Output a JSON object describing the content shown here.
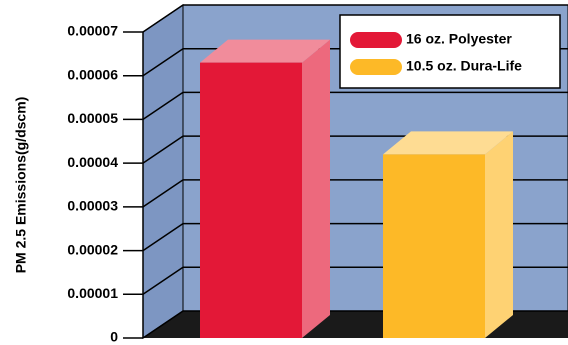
{
  "chart_data": {
    "type": "bar",
    "y_label": "PM 2.5 Emissions(g/dscm)",
    "categories": [
      null
    ],
    "series": [
      {
        "name": "16 oz. Polyester",
        "color": "#e31837",
        "values": [
          6.3e-05
        ]
      },
      {
        "name": "10.5 oz. Dura-Life",
        "color": "#fdb927",
        "values": [
          4.2e-05
        ]
      }
    ],
    "ylim": [
      0,
      7e-05
    ],
    "yticks": [
      0,
      1e-05,
      2e-05,
      3e-05,
      4e-05,
      5e-05,
      6e-05,
      7e-05
    ],
    "grid": true
  }
}
